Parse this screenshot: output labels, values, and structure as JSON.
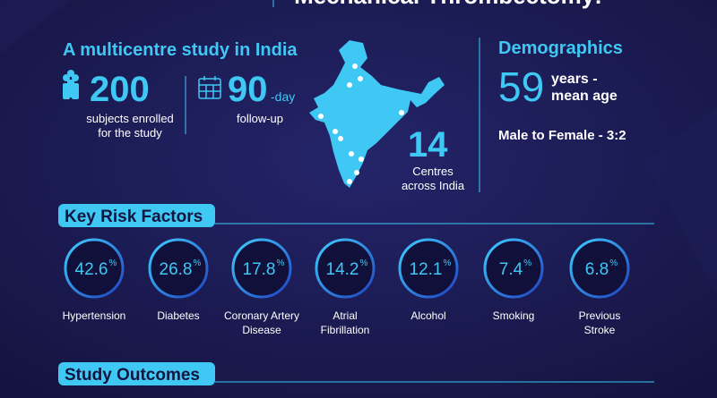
{
  "header": {
    "title": "Mechanical Thrombectomy:"
  },
  "study": {
    "heading": "A multicentre study in India",
    "subjects": {
      "number": 200,
      "lines": [
        "subjects enrolled",
        "for the study"
      ]
    },
    "followup": {
      "number": 90,
      "suffix": "-day",
      "line": "follow-up"
    },
    "centres": {
      "number": 14,
      "lines": [
        "Centres",
        "across India"
      ]
    }
  },
  "demographics": {
    "heading": "Demographics",
    "age": {
      "number": 59,
      "lines": [
        "years -",
        "mean age"
      ]
    },
    "ratio": "Male to Female - 3:2"
  },
  "risk_factors": {
    "heading": "Key Risk Factors",
    "items": [
      {
        "value": 42.6,
        "unit": "%",
        "label": [
          "Hypertension"
        ]
      },
      {
        "value": 26.8,
        "unit": "%",
        "label": [
          "Diabetes"
        ]
      },
      {
        "value": 17.8,
        "unit": "%",
        "label": [
          "Coronary Artery",
          "Disease"
        ]
      },
      {
        "value": 14.2,
        "unit": "%",
        "label": [
          "Atrial",
          "Fibrillation"
        ]
      },
      {
        "value": 12.1,
        "unit": "%",
        "label": [
          "Alcohol"
        ]
      },
      {
        "value": 7.4,
        "unit": "%",
        "label": [
          "Smoking"
        ]
      },
      {
        "value": 6.8,
        "unit": "%",
        "label": [
          "Previous",
          "Stroke"
        ]
      }
    ]
  },
  "outcomes": {
    "heading": "Study Outcomes"
  }
}
